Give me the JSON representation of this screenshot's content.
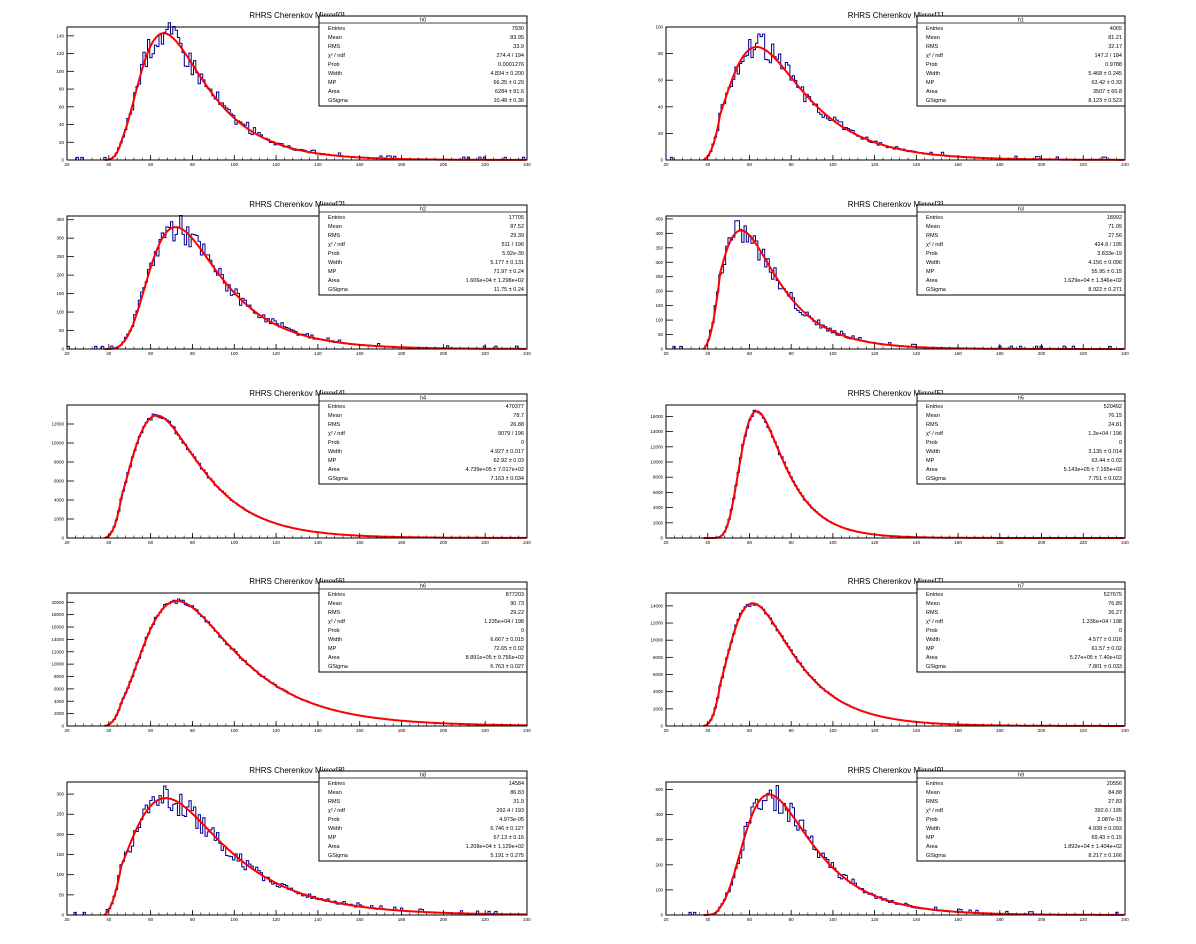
{
  "chart_data": [
    {
      "type": "histogram",
      "title": "RHRS Cherenkov Mirror[0]",
      "hist_name": "h0",
      "xlim": [
        20,
        240
      ],
      "ylim": [
        0,
        150
      ],
      "xticks": [
        20,
        40,
        60,
        80,
        100,
        120,
        140,
        160,
        180,
        200,
        220,
        240
      ],
      "yticks": [
        0,
        20,
        40,
        60,
        80,
        100,
        120,
        140
      ],
      "line_color": "#00008b",
      "fit_color": "#ff0000",
      "fit": {
        "mpv": 66.25,
        "width": 4.834,
        "gsigma": 10.48,
        "peak": 143
      },
      "stats": [
        {
          "label": "Entries",
          "value": "7930"
        },
        {
          "label": "Mean",
          "value": "83.95"
        },
        {
          "label": "RMS",
          "value": "33.9"
        },
        {
          "label": "χ² / ndf",
          "value": "274.4 / 194"
        },
        {
          "label": "Prob",
          "value": "0.0001276"
        },
        {
          "label": "Width",
          "value": "4.834 ± 0.200"
        },
        {
          "label": "MP",
          "value": "66.25 ± 0.29"
        },
        {
          "label": "Area",
          "value": "6284 ± 81.6"
        },
        {
          "label": "GSigma",
          "value": "10.48 ± 0.36"
        }
      ]
    },
    {
      "type": "histogram",
      "title": "RHRS Cherenkov Mirror[1]",
      "hist_name": "h1",
      "xlim": [
        20,
        240
      ],
      "ylim": [
        0,
        100
      ],
      "xticks": [
        20,
        40,
        60,
        80,
        100,
        120,
        140,
        160,
        180,
        200,
        220,
        240
      ],
      "yticks": [
        0,
        20,
        40,
        60,
        80,
        100
      ],
      "line_color": "#00008b",
      "fit_color": "#ff0000",
      "fit": {
        "mpv": 63.42,
        "width": 5.468,
        "gsigma": 8.123,
        "peak": 85
      },
      "stats": [
        {
          "label": "Entries",
          "value": "4065"
        },
        {
          "label": "Mean",
          "value": "81.21"
        },
        {
          "label": "RMS",
          "value": "32.17"
        },
        {
          "label": "χ² / ndf",
          "value": "147.2 / 184"
        },
        {
          "label": "Prob",
          "value": "0.9788"
        },
        {
          "label": "Width",
          "value": "5.468 ± 0.245"
        },
        {
          "label": "MP",
          "value": "63.42 ± 0.33"
        },
        {
          "label": "Area",
          "value": "3507 ± 60.8"
        },
        {
          "label": "GSigma",
          "value": "8.123 ± 0.523"
        }
      ]
    },
    {
      "type": "histogram",
      "title": "RHRS Cherenkov Mirror[2]",
      "hist_name": "h2",
      "xlim": [
        20,
        240
      ],
      "ylim": [
        0,
        360
      ],
      "xticks": [
        20,
        40,
        60,
        80,
        100,
        120,
        140,
        160,
        180,
        200,
        220,
        240
      ],
      "yticks": [
        0,
        50,
        100,
        150,
        200,
        250,
        300,
        350
      ],
      "line_color": "#00008b",
      "fit_color": "#ff0000",
      "fit": {
        "mpv": 71.97,
        "width": 5.177,
        "gsigma": 11.75,
        "peak": 330
      },
      "stats": [
        {
          "label": "Entries",
          "value": "17705"
        },
        {
          "label": "Mean",
          "value": "87.52"
        },
        {
          "label": "RMS",
          "value": "29.39"
        },
        {
          "label": "χ² / ndf",
          "value": "511 / 196"
        },
        {
          "label": "Prob",
          "value": "5.92e-30"
        },
        {
          "label": "Width",
          "value": "5.177 ± 0.131"
        },
        {
          "label": "MP",
          "value": "71.97 ± 0.24"
        },
        {
          "label": "Area",
          "value": "1.606e+04 ± 1.298e+02"
        },
        {
          "label": "GSigma",
          "value": "11.75 ± 0.24"
        }
      ]
    },
    {
      "type": "histogram",
      "title": "RHRS Cherenkov Mirror[3]",
      "hist_name": "h3",
      "xlim": [
        20,
        240
      ],
      "ylim": [
        0,
        460
      ],
      "xticks": [
        20,
        40,
        60,
        80,
        100,
        120,
        140,
        160,
        180,
        200,
        220,
        240
      ],
      "yticks": [
        0,
        50,
        100,
        150,
        200,
        250,
        300,
        350,
        400,
        450
      ],
      "line_color": "#00008b",
      "fit_color": "#ff0000",
      "fit": {
        "mpv": 55.95,
        "width": 4.156,
        "gsigma": 8.922,
        "peak": 410
      },
      "stats": [
        {
          "label": "Entries",
          "value": "18992"
        },
        {
          "label": "Mean",
          "value": "71.05"
        },
        {
          "label": "RMS",
          "value": "27.56"
        },
        {
          "label": "χ² / ndf",
          "value": "424.9 / 195"
        },
        {
          "label": "Prob",
          "value": "3.833e-19"
        },
        {
          "label": "Width",
          "value": "4.156 ± 0.096"
        },
        {
          "label": "MP",
          "value": "55.95 ± 0.15"
        },
        {
          "label": "Area",
          "value": "1.629e+04 ± 1.346e+02"
        },
        {
          "label": "GSigma",
          "value": "8.922 ± 0.271"
        }
      ]
    },
    {
      "type": "histogram",
      "title": "RHRS Cherenkov Mirror[4]",
      "hist_name": "h4",
      "xlim": [
        20,
        240
      ],
      "ylim": [
        0,
        14000
      ],
      "xticks": [
        20,
        40,
        60,
        80,
        100,
        120,
        140,
        160,
        180,
        200,
        220,
        240
      ],
      "yticks": [
        0,
        2000,
        4000,
        6000,
        8000,
        10000,
        12000
      ],
      "line_color": "#00008b",
      "fit_color": "#ff0000",
      "fit": {
        "mpv": 62.92,
        "width": 4.927,
        "gsigma": 7.163,
        "peak": 12900
      },
      "stats": [
        {
          "label": "Entries",
          "value": "470377"
        },
        {
          "label": "Mean",
          "value": "78.7"
        },
        {
          "label": "RMS",
          "value": "26.88"
        },
        {
          "label": "χ² / ndf",
          "value": "9079 / 196"
        },
        {
          "label": "Prob",
          "value": "0"
        },
        {
          "label": "Width",
          "value": "4.927 ± 0.017"
        },
        {
          "label": "MP",
          "value": "62.92 ± 0.03"
        },
        {
          "label": "Area",
          "value": "4.739e+05 ± 7.017e+02"
        },
        {
          "label": "GSigma",
          "value": "7.163 ± 0.034"
        }
      ]
    },
    {
      "type": "histogram",
      "title": "RHRS Cherenkov Mirror[5]",
      "hist_name": "h5",
      "xlim": [
        20,
        240
      ],
      "ylim": [
        0,
        17500
      ],
      "xticks": [
        20,
        40,
        60,
        80,
        100,
        120,
        140,
        160,
        180,
        200,
        220,
        240
      ],
      "yticks": [
        0,
        2000,
        4000,
        6000,
        8000,
        10000,
        12000,
        14000,
        16000
      ],
      "line_color": "#00008b",
      "fit_color": "#ff0000",
      "fit": {
        "mpv": 63.44,
        "width": 3.135,
        "gsigma": 7.751,
        "peak": 16700
      },
      "stats": [
        {
          "label": "Entries",
          "value": "520492"
        },
        {
          "label": "Mean",
          "value": "76.15"
        },
        {
          "label": "RMS",
          "value": "24.81"
        },
        {
          "label": "χ² / ndf",
          "value": "1.3e+04 / 196"
        },
        {
          "label": "Prob",
          "value": "0"
        },
        {
          "label": "Width",
          "value": "3.135 ± 0.014"
        },
        {
          "label": "MP",
          "value": "63.44 ± 0.02"
        },
        {
          "label": "Area",
          "value": "5.143e+05 ± 7.165e+02"
        },
        {
          "label": "GSigma",
          "value": "7.751 ± 0.023"
        }
      ]
    },
    {
      "type": "histogram",
      "title": "RHRS Cherenkov Mirror[6]",
      "hist_name": "h6",
      "xlim": [
        20,
        240
      ],
      "ylim": [
        0,
        21500
      ],
      "xticks": [
        20,
        40,
        60,
        80,
        100,
        120,
        140,
        160,
        180,
        200,
        220,
        240
      ],
      "yticks": [
        0,
        2000,
        4000,
        6000,
        8000,
        10000,
        12000,
        14000,
        16000,
        18000,
        20000
      ],
      "line_color": "#00008b",
      "fit_color": "#ff0000",
      "fit": {
        "mpv": 72.65,
        "width": 6.667,
        "gsigma": 6.763,
        "peak": 20200
      },
      "stats": [
        {
          "label": "Entries",
          "value": "877203"
        },
        {
          "label": "Mean",
          "value": "90.73"
        },
        {
          "label": "RMS",
          "value": "29.22"
        },
        {
          "label": "χ² / ndf",
          "value": "1.235e+04 / 198"
        },
        {
          "label": "Prob",
          "value": "0"
        },
        {
          "label": "Width",
          "value": "6.667 ± 0.015"
        },
        {
          "label": "MP",
          "value": "72.65 ± 0.02"
        },
        {
          "label": "Area",
          "value": "8.891e+05 ± 9.756e+02"
        },
        {
          "label": "GSigma",
          "value": "6.763 ± 0.027"
        }
      ]
    },
    {
      "type": "histogram",
      "title": "RHRS Cherenkov Mirror[7]",
      "hist_name": "h7",
      "xlim": [
        20,
        240
      ],
      "ylim": [
        0,
        15500
      ],
      "xticks": [
        20,
        40,
        60,
        80,
        100,
        120,
        140,
        160,
        180,
        200,
        220,
        240
      ],
      "yticks": [
        0,
        2000,
        4000,
        6000,
        8000,
        10000,
        12000,
        14000
      ],
      "line_color": "#00008b",
      "fit_color": "#ff0000",
      "fit": {
        "mpv": 61.57,
        "width": 4.577,
        "gsigma": 7.801,
        "peak": 14300
      },
      "stats": [
        {
          "label": "Entries",
          "value": "527675"
        },
        {
          "label": "Mean",
          "value": "76.89"
        },
        {
          "label": "RMS",
          "value": "26.27"
        },
        {
          "label": "χ² / ndf",
          "value": "1.336e+04 / 198"
        },
        {
          "label": "Prob",
          "value": "0"
        },
        {
          "label": "Width",
          "value": "4.577 ± 0.016"
        },
        {
          "label": "MP",
          "value": "61.57 ± 0.02"
        },
        {
          "label": "Area",
          "value": "5.27e+05 ± 7.40e+02"
        },
        {
          "label": "GSigma",
          "value": "7.801 ± 0.033"
        }
      ]
    },
    {
      "type": "histogram",
      "title": "RHRS Cherenkov Mirror[8]",
      "hist_name": "h8",
      "xlim": [
        20,
        240
      ],
      "ylim": [
        0,
        330
      ],
      "xticks": [
        20,
        40,
        60,
        80,
        100,
        120,
        140,
        160,
        180,
        200,
        220,
        240
      ],
      "yticks": [
        0,
        50,
        100,
        150,
        200,
        250,
        300
      ],
      "line_color": "#00008b",
      "fit_color": "#ff0000",
      "fit": {
        "mpv": 67.13,
        "width": 6.746,
        "gsigma": 5.191,
        "peak": 290
      },
      "stats": [
        {
          "label": "Entries",
          "value": "14584"
        },
        {
          "label": "Mean",
          "value": "86.83"
        },
        {
          "label": "RMS",
          "value": "31.9"
        },
        {
          "label": "χ² / ndf",
          "value": "292.4 / 193"
        },
        {
          "label": "Prob",
          "value": "4.973e-05"
        },
        {
          "label": "Width",
          "value": "6.746 ± 0.127"
        },
        {
          "label": "MP",
          "value": "67.13 ± 0.16"
        },
        {
          "label": "Area",
          "value": "1.208e+04 ± 1.129e+02"
        },
        {
          "label": "GSigma",
          "value": "5.191 ± 0.275"
        }
      ]
    },
    {
      "type": "histogram",
      "title": "RHRS Cherenkov Mirror[9]",
      "hist_name": "h9",
      "xlim": [
        20,
        240
      ],
      "ylim": [
        0,
        530
      ],
      "xticks": [
        20,
        40,
        60,
        80,
        100,
        120,
        140,
        160,
        180,
        200,
        220,
        240
      ],
      "yticks": [
        0,
        100,
        200,
        300,
        400,
        500
      ],
      "line_color": "#00008b",
      "fit_color": "#ff0000",
      "fit": {
        "mpv": 69.43,
        "width": 4.938,
        "gsigma": 8.217,
        "peak": 480
      },
      "stats": [
        {
          "label": "Entries",
          "value": "20556"
        },
        {
          "label": "Mean",
          "value": "84.88"
        },
        {
          "label": "RMS",
          "value": "27.83"
        },
        {
          "label": "χ² / ndf",
          "value": "392.6 / 195"
        },
        {
          "label": "Prob",
          "value": "2.087e-15"
        },
        {
          "label": "Width",
          "value": "4.938 ± 0.093"
        },
        {
          "label": "MP",
          "value": "69.43 ± 0.15"
        },
        {
          "label": "Area",
          "value": "1.892e+04 ± 1.404e+02"
        },
        {
          "label": "GSigma",
          "value": "8.217 ± 0.166"
        }
      ]
    }
  ]
}
